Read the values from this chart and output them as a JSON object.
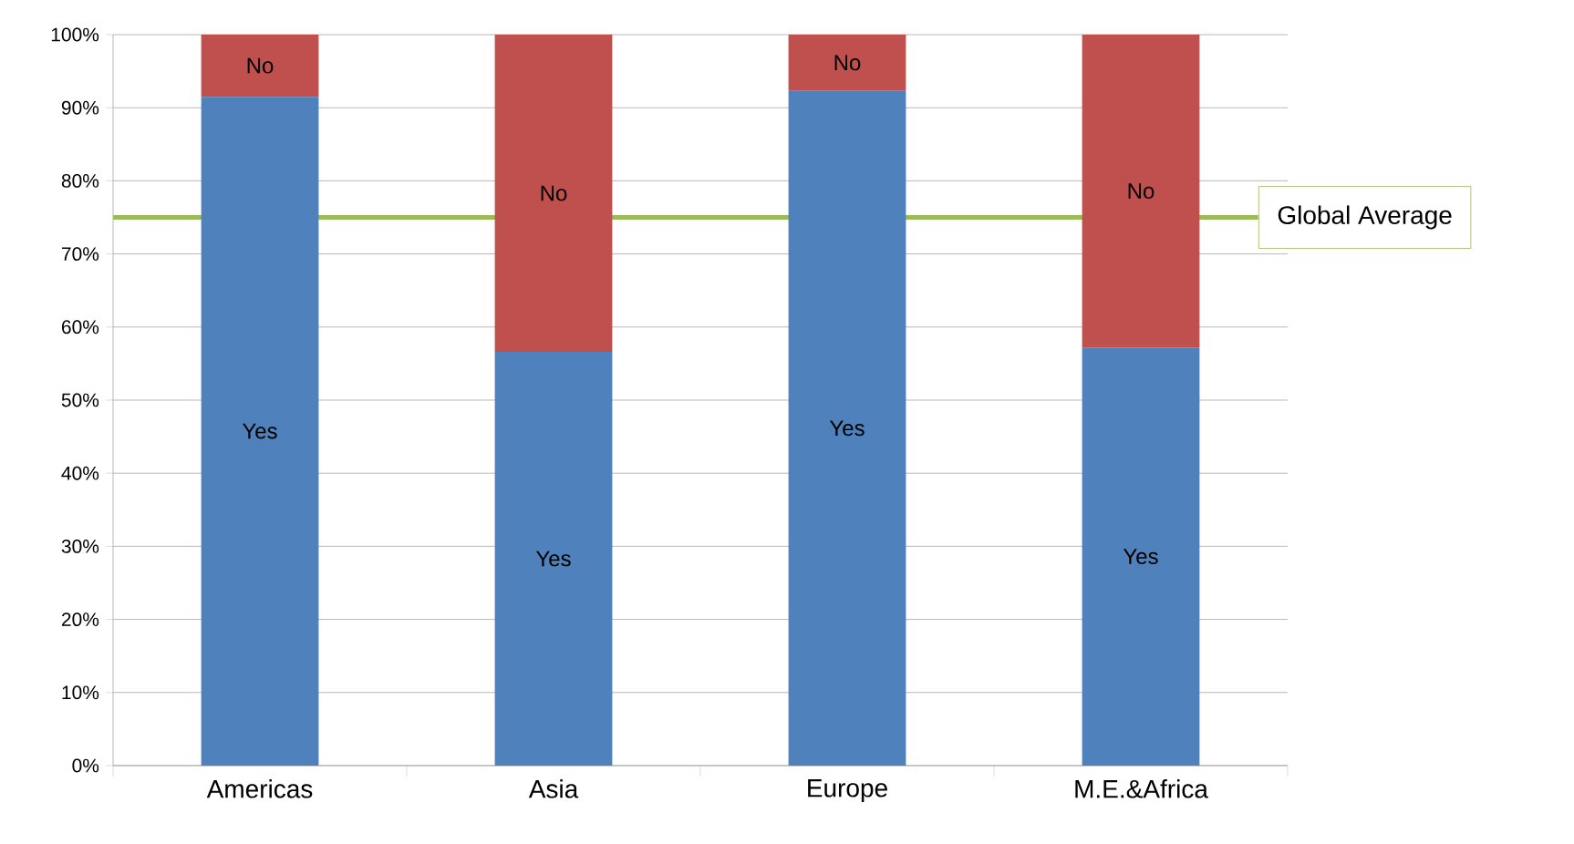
{
  "chart_data": {
    "type": "bar",
    "stacked": true,
    "categories": [
      "Americas",
      "Asia",
      "Europe",
      "M.E.&Africa"
    ],
    "series": [
      {
        "name": "Yes",
        "color": "#4f81bd",
        "values": [
          91.5,
          56.6,
          92.3,
          57.2
        ]
      },
      {
        "name": "No",
        "color": "#c0504d",
        "values": [
          8.5,
          43.4,
          7.7,
          42.8
        ]
      }
    ],
    "ylim": [
      0,
      100
    ],
    "yticks": [
      {
        "value": 0,
        "label": "0%"
      },
      {
        "value": 10,
        "label": "10%"
      },
      {
        "value": 20,
        "label": "20%"
      },
      {
        "value": 30,
        "label": "30%"
      },
      {
        "value": 40,
        "label": "40%"
      },
      {
        "value": 50,
        "label": "50%"
      },
      {
        "value": 60,
        "label": "60%"
      },
      {
        "value": 70,
        "label": "70%"
      },
      {
        "value": 80,
        "label": "80%"
      },
      {
        "value": 90,
        "label": "90%"
      },
      {
        "value": 100,
        "label": "100%"
      }
    ],
    "grid": "y",
    "ref_lines": [
      {
        "axis": "y",
        "value": 75,
        "label": "Global Average",
        "color": "#9bbb59"
      }
    ]
  }
}
